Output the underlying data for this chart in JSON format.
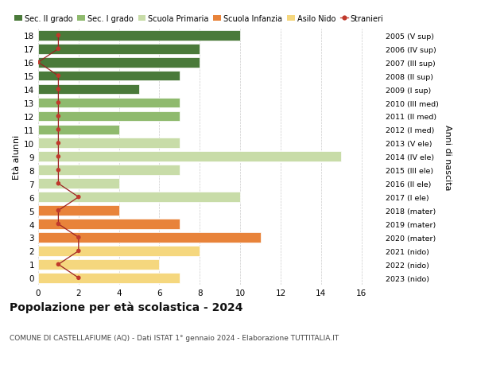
{
  "ages": [
    0,
    1,
    2,
    3,
    4,
    5,
    6,
    7,
    8,
    9,
    10,
    11,
    12,
    13,
    14,
    15,
    16,
    17,
    18
  ],
  "years_labels": [
    "2023 (nido)",
    "2022 (nido)",
    "2021 (nido)",
    "2020 (mater)",
    "2019 (mater)",
    "2018 (mater)",
    "2017 (I ele)",
    "2016 (II ele)",
    "2015 (III ele)",
    "2014 (IV ele)",
    "2013 (V ele)",
    "2012 (I med)",
    "2011 (II med)",
    "2010 (III med)",
    "2009 (I sup)",
    "2008 (II sup)",
    "2007 (III sup)",
    "2006 (IV sup)",
    "2005 (V sup)"
  ],
  "bar_values": [
    7,
    6,
    8,
    11,
    7,
    4,
    10,
    4,
    7,
    15,
    7,
    4,
    7,
    7,
    5,
    7,
    8,
    8,
    10
  ],
  "bar_colors": [
    "#f5d77e",
    "#f5d77e",
    "#f5d77e",
    "#e8833a",
    "#e8833a",
    "#e8833a",
    "#c8dca8",
    "#c8dca8",
    "#c8dca8",
    "#c8dca8",
    "#c8dca8",
    "#8fba6e",
    "#8fba6e",
    "#8fba6e",
    "#4a7a3a",
    "#4a7a3a",
    "#4a7a3a",
    "#4a7a3a",
    "#4a7a3a"
  ],
  "stranieri_values": [
    2,
    1,
    2,
    2,
    1,
    1,
    2,
    1,
    1,
    1,
    1,
    1,
    1,
    1,
    1,
    1,
    0,
    1,
    1
  ],
  "xlim": [
    0,
    17
  ],
  "xticks": [
    0,
    2,
    4,
    6,
    8,
    10,
    12,
    14,
    16
  ],
  "title": "Popolazione per età scolastica - 2024",
  "subtitle": "COMUNE DI CASTELLAFIUME (AQ) - Dati ISTAT 1° gennaio 2024 - Elaborazione TUTTITALIA.IT",
  "ylabel_left": "Età alunni",
  "ylabel_right": "Anni di nascita",
  "legend_labels": [
    "Sec. II grado",
    "Sec. I grado",
    "Scuola Primaria",
    "Scuola Infanzia",
    "Asilo Nido",
    "Stranieri"
  ],
  "legend_colors": [
    "#4a7a3a",
    "#8fba6e",
    "#c8dca8",
    "#e8833a",
    "#f5d77e",
    "#c0392b"
  ],
  "bg_color": "#ffffff",
  "grid_color": "#cccccc",
  "bar_height": 0.75
}
